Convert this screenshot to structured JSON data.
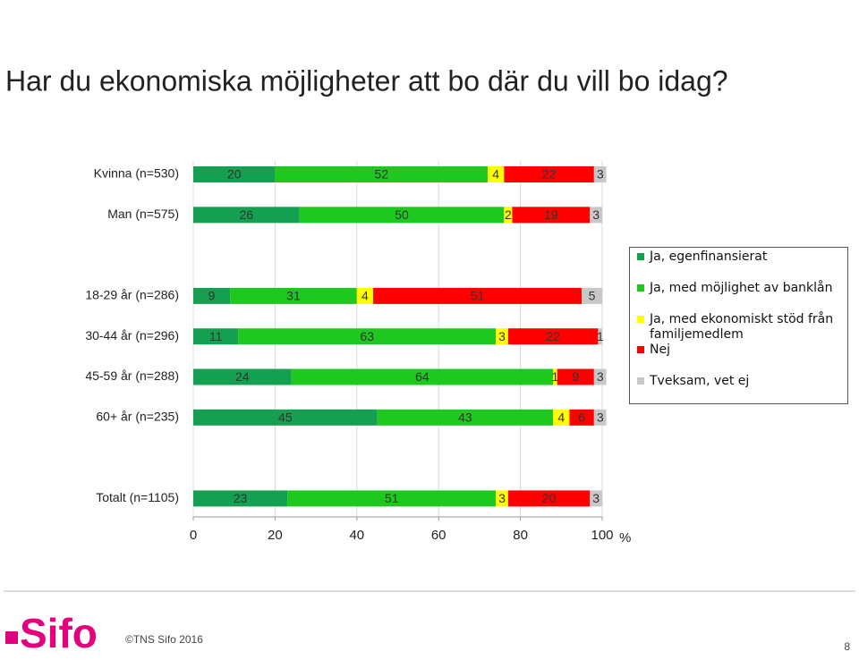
{
  "chart_data": {
    "type": "stacked-bar-horizontal",
    "title": "Har du ekonomiska möjligheter att bo där du vill bo idag?",
    "categories": [
      "Kvinna (n=530)",
      "Man (n=575)",
      null,
      "18-29 år (n=286)",
      "30-44 år (n=296)",
      "45-59 år (n=288)",
      "60+ år (n=235)",
      null,
      "Totalt (n=1105)"
    ],
    "series": [
      {
        "name": "Ja, egenfinansierat",
        "color": "#14a050",
        "values": [
          20,
          26,
          null,
          9,
          11,
          24,
          45,
          null,
          23
        ]
      },
      {
        "name": "Ja, med möjlighet av banklån",
        "color": "#1ec81e",
        "values": [
          52,
          50,
          null,
          31,
          63,
          64,
          43,
          null,
          51
        ]
      },
      {
        "name": "Ja, med ekonomiskt stöd från familjemedlem",
        "color": "#ffff00",
        "values": [
          4,
          2,
          null,
          4,
          3,
          1,
          4,
          null,
          3
        ]
      },
      {
        "name": "Nej",
        "color": "#ff0000",
        "values": [
          22,
          19,
          null,
          51,
          22,
          9,
          6,
          null,
          20
        ]
      },
      {
        "name": "Tveksam, vet ej",
        "color": "#c8c8c8",
        "values": [
          3,
          3,
          null,
          5,
          1,
          3,
          3,
          null,
          3
        ]
      }
    ],
    "xlim": [
      0,
      100
    ],
    "xticks": [
      0,
      20,
      40,
      60,
      80,
      100
    ],
    "x_label": "%",
    "grid": true,
    "legend": "right"
  },
  "footer": {
    "logo": "Sifo",
    "copyright": "©TNS Sifo 2016",
    "page": "8"
  }
}
